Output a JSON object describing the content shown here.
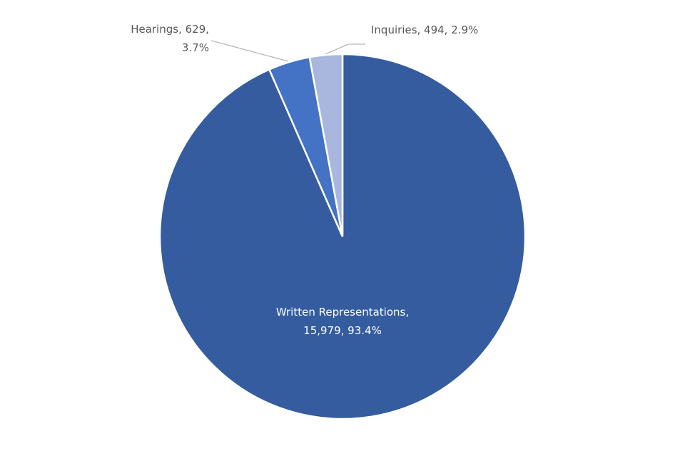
{
  "chart_data": {
    "type": "pie",
    "categories": [
      "Written Representations",
      "Hearings",
      "Inquiries"
    ],
    "values": [
      15979,
      629,
      494
    ],
    "value_labels": [
      [
        "Written Representations,",
        "15,979,  93.4%"
      ],
      [
        "Hearings, 629,",
        "3.7%"
      ],
      [
        "Inquiries, 494, 2.9%"
      ]
    ],
    "colors": [
      "#345c9f",
      "#4472c4",
      "#a9b7de"
    ],
    "start_angle": 0,
    "direction": "clockwise"
  }
}
